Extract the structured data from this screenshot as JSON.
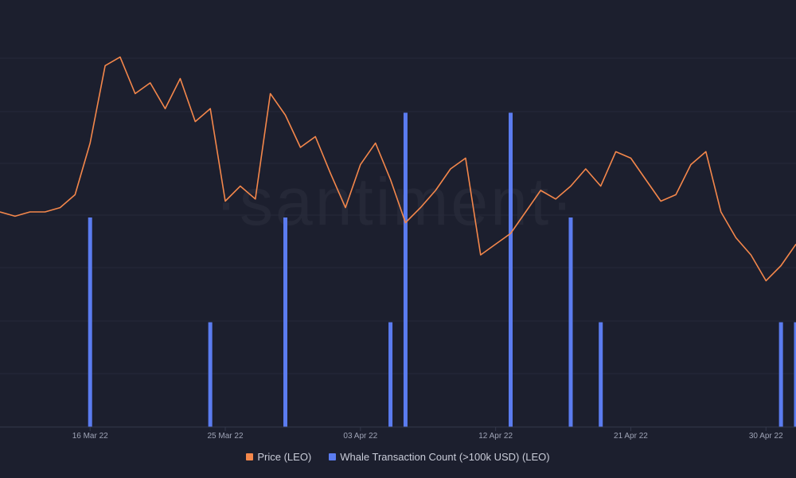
{
  "watermark": "·santiment·",
  "colors": {
    "background": "#1c1f2e",
    "grid": "#262a3b",
    "price": "#f4874b",
    "whale": "#5b7cf0",
    "tick_text": "#9ea3b5"
  },
  "legend": [
    {
      "label": "Price (LEO)",
      "color": "#f4874b"
    },
    {
      "label": "Whale Transaction Count (>100k USD) (LEO)",
      "color": "#5b7cf0"
    }
  ],
  "chart_data": {
    "type": "line",
    "title": "",
    "xlabel": "",
    "ylabel": "",
    "grid": true,
    "legend_placement": "bottom-center",
    "x_ticks": [
      "16 Mar 22",
      "25 Mar 22",
      "03 Apr 22",
      "12 Apr 22",
      "21 Apr 22",
      "30 Apr 22"
    ],
    "x_range": [
      "2022-03-10",
      "2022-05-02"
    ],
    "series": [
      {
        "name": "Price (LEO)",
        "kind": "line",
        "axis": "price",
        "x": [
          "2022-03-10",
          "2022-03-11",
          "2022-03-12",
          "2022-03-13",
          "2022-03-14",
          "2022-03-15",
          "2022-03-16",
          "2022-03-17",
          "2022-03-18",
          "2022-03-19",
          "2022-03-20",
          "2022-03-21",
          "2022-03-22",
          "2022-03-23",
          "2022-03-24",
          "2022-03-25",
          "2022-03-26",
          "2022-03-27",
          "2022-03-28",
          "2022-03-29",
          "2022-03-30",
          "2022-03-31",
          "2022-04-01",
          "2022-04-02",
          "2022-04-03",
          "2022-04-04",
          "2022-04-05",
          "2022-04-06",
          "2022-04-07",
          "2022-04-08",
          "2022-04-09",
          "2022-04-10",
          "2022-04-11",
          "2022-04-12",
          "2022-04-13",
          "2022-04-14",
          "2022-04-15",
          "2022-04-16",
          "2022-04-17",
          "2022-04-18",
          "2022-04-19",
          "2022-04-20",
          "2022-04-21",
          "2022-04-22",
          "2022-04-23",
          "2022-04-24",
          "2022-04-25",
          "2022-04-26",
          "2022-04-27",
          "2022-04-28",
          "2022-04-29",
          "2022-04-30",
          "2022-05-01",
          "2022-05-02"
        ],
        "values": [
          5.6,
          5.58,
          5.6,
          5.6,
          5.62,
          5.68,
          5.92,
          6.28,
          6.32,
          6.15,
          6.2,
          6.08,
          6.22,
          6.02,
          6.08,
          5.65,
          5.72,
          5.66,
          6.15,
          6.05,
          5.9,
          5.95,
          5.78,
          5.62,
          5.82,
          5.92,
          5.75,
          5.55,
          5.62,
          5.7,
          5.8,
          5.85,
          5.4,
          5.45,
          5.5,
          5.6,
          5.7,
          5.66,
          5.72,
          5.8,
          5.72,
          5.88,
          5.85,
          5.75,
          5.65,
          5.68,
          5.82,
          5.88,
          5.6,
          5.48,
          5.4,
          5.28,
          5.35,
          5.45
        ]
      },
      {
        "name": "Whale Transaction Count (>100k USD) (LEO)",
        "kind": "bar",
        "axis": "count",
        "x": [
          "2022-03-16",
          "2022-03-24",
          "2022-03-29",
          "2022-04-05",
          "2022-04-06",
          "2022-04-13",
          "2022-04-17",
          "2022-04-19",
          "2022-05-01",
          "2022-05-02"
        ],
        "values": [
          4,
          2,
          4,
          2,
          6,
          6,
          4,
          2,
          2,
          2
        ]
      }
    ]
  }
}
